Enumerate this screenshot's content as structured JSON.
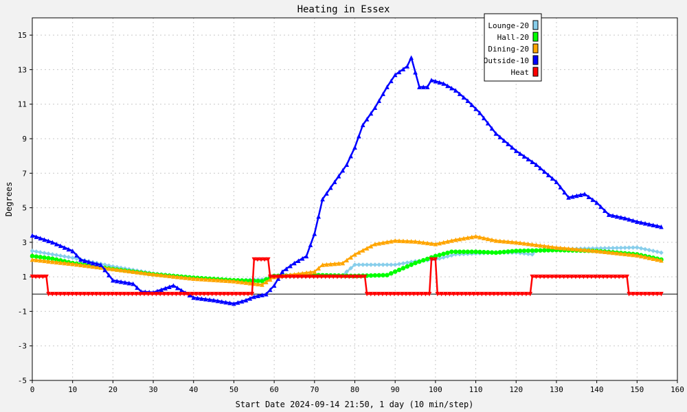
{
  "chart_data": {
    "type": "line",
    "title": "Heating in Essex",
    "xlabel": "Start Date 2024-09-14 21:50, 1 day (10 min/step)",
    "ylabel": "Degrees",
    "xlim": [
      0,
      160
    ],
    "ylim": [
      -5,
      16
    ],
    "xticks": [
      0,
      10,
      20,
      30,
      40,
      50,
      60,
      70,
      80,
      90,
      100,
      110,
      120,
      130,
      140,
      150,
      160
    ],
    "yticks": [
      -5,
      -3,
      -1,
      1,
      3,
      5,
      7,
      9,
      11,
      13,
      15
    ],
    "grid": true,
    "legend_position": "top-right",
    "series": [
      {
        "name": "Lounge-20",
        "color": "#87ceeb",
        "marker": "diamond",
        "points": [
          [
            0,
            2.5
          ],
          [
            10,
            2.1
          ],
          [
            20,
            1.6
          ],
          [
            30,
            1.2
          ],
          [
            40,
            0.95
          ],
          [
            50,
            0.8
          ],
          [
            57,
            0.85
          ],
          [
            60,
            1.0
          ],
          [
            70,
            1.05
          ],
          [
            77,
            1.1
          ],
          [
            80,
            1.7
          ],
          [
            90,
            1.7
          ],
          [
            95,
            1.9
          ],
          [
            100,
            2.0
          ],
          [
            105,
            2.3
          ],
          [
            115,
            2.4
          ],
          [
            120,
            2.4
          ],
          [
            124,
            2.3
          ],
          [
            125,
            2.5
          ],
          [
            130,
            2.6
          ],
          [
            140,
            2.65
          ],
          [
            150,
            2.7
          ],
          [
            156,
            2.4
          ]
        ]
      },
      {
        "name": "Hall-20",
        "color": "#00ff00",
        "marker": "circle",
        "points": [
          [
            0,
            2.2
          ],
          [
            5,
            2.05
          ],
          [
            10,
            1.8
          ],
          [
            20,
            1.45
          ],
          [
            30,
            1.15
          ],
          [
            40,
            0.95
          ],
          [
            50,
            0.8
          ],
          [
            57,
            0.75
          ],
          [
            60,
            1.05
          ],
          [
            70,
            1.1
          ],
          [
            80,
            1.05
          ],
          [
            88,
            1.1
          ],
          [
            90,
            1.3
          ],
          [
            95,
            1.8
          ],
          [
            100,
            2.2
          ],
          [
            104,
            2.45
          ],
          [
            110,
            2.45
          ],
          [
            115,
            2.4
          ],
          [
            120,
            2.5
          ],
          [
            130,
            2.55
          ],
          [
            140,
            2.5
          ],
          [
            150,
            2.3
          ],
          [
            156,
            2.0
          ]
        ]
      },
      {
        "name": "Dining-20",
        "color": "#ffa500",
        "marker": "triangle",
        "points": [
          [
            0,
            2.0
          ],
          [
            10,
            1.75
          ],
          [
            20,
            1.45
          ],
          [
            30,
            1.15
          ],
          [
            40,
            0.9
          ],
          [
            50,
            0.75
          ],
          [
            57,
            0.55
          ],
          [
            60,
            1.0
          ],
          [
            70,
            1.3
          ],
          [
            72,
            1.7
          ],
          [
            77,
            1.8
          ],
          [
            80,
            2.3
          ],
          [
            85,
            2.9
          ],
          [
            90,
            3.1
          ],
          [
            95,
            3.05
          ],
          [
            100,
            2.9
          ],
          [
            105,
            3.15
          ],
          [
            110,
            3.35
          ],
          [
            115,
            3.1
          ],
          [
            120,
            3.0
          ],
          [
            130,
            2.7
          ],
          [
            140,
            2.5
          ],
          [
            150,
            2.25
          ],
          [
            156,
            1.95
          ]
        ]
      },
      {
        "name": "Outside-10",
        "color": "#0000ff",
        "marker": "triangle",
        "points": [
          [
            0,
            3.4
          ],
          [
            5,
            3.0
          ],
          [
            10,
            2.5
          ],
          [
            12,
            2.0
          ],
          [
            15,
            1.8
          ],
          [
            17,
            1.7
          ],
          [
            20,
            0.8
          ],
          [
            25,
            0.6
          ],
          [
            27,
            0.15
          ],
          [
            30,
            0.1
          ],
          [
            35,
            0.5
          ],
          [
            40,
            -0.2
          ],
          [
            45,
            -0.35
          ],
          [
            50,
            -0.55
          ],
          [
            53,
            -0.35
          ],
          [
            55,
            -0.15
          ],
          [
            58,
            0.0
          ],
          [
            60,
            0.5
          ],
          [
            62,
            1.3
          ],
          [
            65,
            1.8
          ],
          [
            68,
            2.2
          ],
          [
            70,
            3.5
          ],
          [
            72,
            5.5
          ],
          [
            75,
            6.5
          ],
          [
            78,
            7.5
          ],
          [
            80,
            8.5
          ],
          [
            82,
            9.8
          ],
          [
            85,
            10.8
          ],
          [
            88,
            12.0
          ],
          [
            90,
            12.7
          ],
          [
            93,
            13.2
          ],
          [
            94,
            13.7
          ],
          [
            96,
            12.0
          ],
          [
            98,
            12.0
          ],
          [
            99,
            12.4
          ],
          [
            102,
            12.2
          ],
          [
            105,
            11.8
          ],
          [
            108,
            11.2
          ],
          [
            111,
            10.5
          ],
          [
            115,
            9.3
          ],
          [
            120,
            8.3
          ],
          [
            125,
            7.5
          ],
          [
            130,
            6.5
          ],
          [
            133,
            5.6
          ],
          [
            137,
            5.8
          ],
          [
            140,
            5.3
          ],
          [
            143,
            4.6
          ],
          [
            147,
            4.4
          ],
          [
            150,
            4.2
          ],
          [
            156,
            3.9
          ]
        ]
      },
      {
        "name": "Heat",
        "color": "#ff0000",
        "marker": "triangle-down",
        "points": [
          [
            0,
            1.0
          ],
          [
            3.5,
            1.0
          ],
          [
            4,
            0.0
          ],
          [
            54.5,
            0.0
          ],
          [
            55,
            2.0
          ],
          [
            58.5,
            2.0
          ],
          [
            59,
            1.0
          ],
          [
            82.5,
            1.0
          ],
          [
            83,
            0.0
          ],
          [
            98.5,
            0.0
          ],
          [
            99,
            2.0
          ],
          [
            100,
            2.0
          ],
          [
            100.5,
            0.0
          ],
          [
            123.5,
            0.0
          ],
          [
            124,
            1.0
          ],
          [
            147.5,
            1.0
          ],
          [
            148,
            0.0
          ],
          [
            156,
            0.0
          ]
        ]
      }
    ]
  }
}
